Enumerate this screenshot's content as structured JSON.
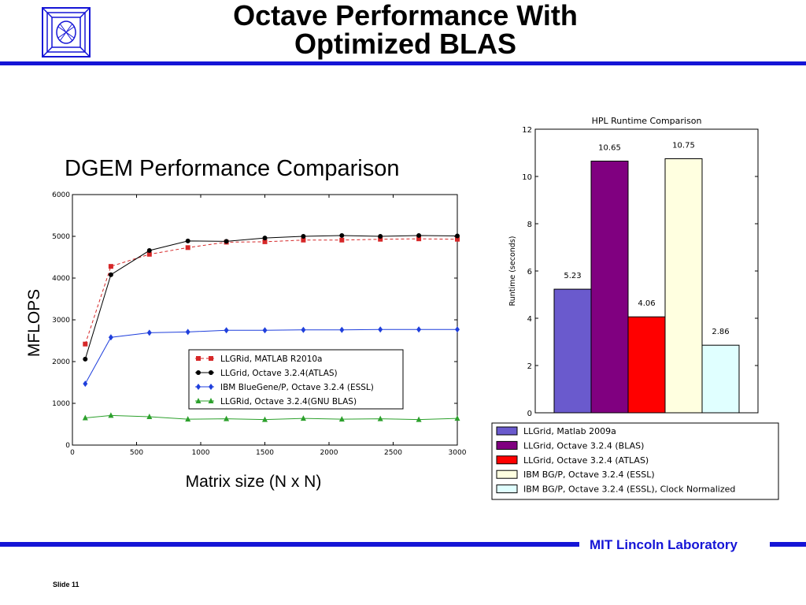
{
  "slide": {
    "title_line1": "Octave Performance With",
    "title_line2": "Optimized BLAS",
    "left_chart_title": "DGEM Performance Comparison",
    "left_ylabel": "MFLOPS",
    "left_xlabel": "Matrix size (N x N)",
    "footer_lab": "MIT Lincoln Laboratory",
    "slide_number": "Slide 11",
    "accent_color": "#1515d6"
  },
  "chart_data": [
    {
      "type": "line",
      "title": "DGEM Performance Comparison",
      "xlabel": "Matrix size (N x N)",
      "ylabel": "MFLOPS",
      "xlim": [
        0,
        3000
      ],
      "ylim": [
        0,
        6000
      ],
      "xticks": [
        0,
        500,
        1000,
        1500,
        2000,
        2500,
        3000
      ],
      "yticks": [
        0,
        1000,
        2000,
        3000,
        4000,
        5000,
        6000
      ],
      "grid": false,
      "legend_position": "center-right",
      "x": [
        100,
        300,
        600,
        900,
        1200,
        1500,
        1800,
        2100,
        2400,
        2700,
        3000
      ],
      "series": [
        {
          "name": "LLGRid, MATLAB R2010a",
          "color": "#d62728",
          "dashed": true,
          "marker": "square",
          "values": [
            2420,
            4280,
            4570,
            4730,
            4860,
            4870,
            4910,
            4910,
            4930,
            4940,
            4930
          ]
        },
        {
          "name": "LLGrid, Octave 3.2.4(ATLAS)",
          "color": "#000000",
          "dashed": false,
          "marker": "circle",
          "values": [
            2060,
            4080,
            4660,
            4890,
            4880,
            4960,
            5000,
            5020,
            5000,
            5020,
            5010
          ]
        },
        {
          "name": "IBM BlueGene/P, Octave 3.2.4 (ESSL)",
          "color": "#1f3fdc",
          "dashed": false,
          "marker": "diamond",
          "values": [
            1470,
            2580,
            2690,
            2710,
            2750,
            2750,
            2760,
            2760,
            2770,
            2770,
            2770
          ]
        },
        {
          "name": "LLGRid, Octave 3.2.4(GNU BLAS)",
          "color": "#2ca02c",
          "dashed": false,
          "marker": "triangle",
          "values": [
            650,
            710,
            680,
            620,
            630,
            610,
            640,
            620,
            630,
            610,
            640
          ]
        }
      ]
    },
    {
      "type": "bar",
      "title": "HPL Runtime Comparison",
      "ylabel": "Runtime (seconds)",
      "ylim": [
        0,
        12
      ],
      "yticks": [
        0,
        2,
        4,
        6,
        8,
        10,
        12
      ],
      "legend_position": "below",
      "categories": [
        "LLGrid, Matlab 2009a",
        "LLGrid, Octave 3.2.4 (BLAS)",
        "LLGrid, Octave 3.2.4 (ATLAS)",
        "IBM BG/P, Octave 3.2.4 (ESSL)",
        "IBM BG/P, Octave 3.2.4 (ESSL), Clock Normalized"
      ],
      "values": [
        5.23,
        10.65,
        4.06,
        10.75,
        2.86
      ],
      "value_labels": [
        "5.23",
        "10.65",
        "4.06",
        "10.75",
        "2.86"
      ],
      "colors": [
        "#6a5acd",
        "#800080",
        "#ff0000",
        "#ffffe0",
        "#e0ffff"
      ]
    }
  ]
}
